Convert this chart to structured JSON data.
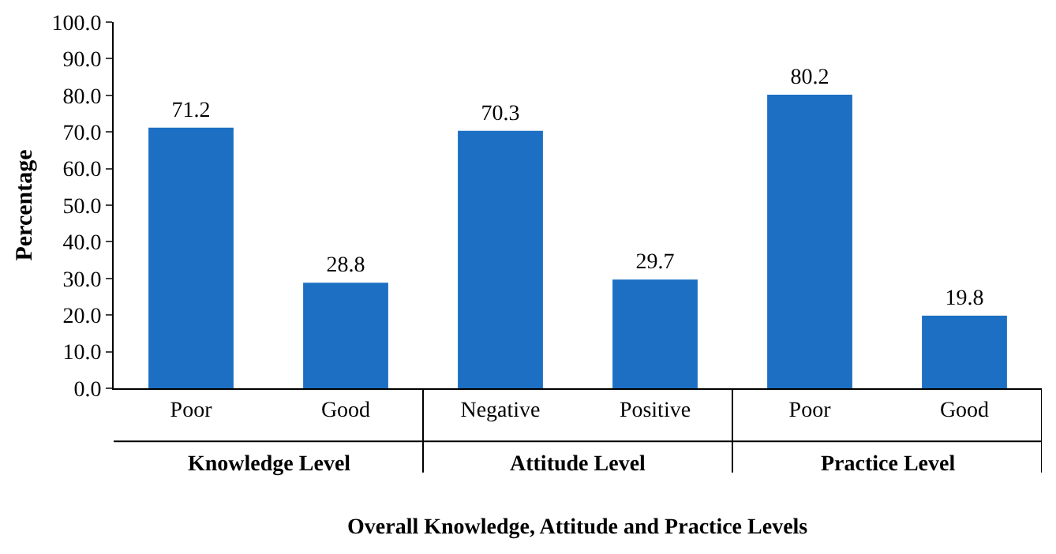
{
  "chart_data": {
    "type": "bar",
    "categories": [
      "Poor",
      "Good",
      "Negative",
      "Positive",
      "Poor",
      "Good"
    ],
    "values": [
      71.2,
      28.8,
      70.3,
      29.7,
      80.2,
      19.8
    ],
    "color": "#1c6fc2",
    "data_labels": true,
    "ylabel": "Percentage",
    "xlabel": "Overall Knowledge, Attitude and Practice Levels",
    "annotations": [
      "Knowledge Level",
      "Attitude Level",
      "Practice Level"
    ],
    "ylim": [
      0,
      100
    ],
    "yticks": [
      {
        "value": 0,
        "label": "0.0"
      },
      {
        "value": 10,
        "label": "10.0"
      },
      {
        "value": 20,
        "label": "20.0"
      },
      {
        "value": 30,
        "label": "30.0"
      },
      {
        "value": 40,
        "label": "40.0"
      },
      {
        "value": 50,
        "label": "50.0"
      },
      {
        "value": 60,
        "label": "60.0"
      },
      {
        "value": 70,
        "label": "70.0"
      },
      {
        "value": 80,
        "label": "80.0"
      },
      {
        "value": 90,
        "label": "90.0"
      },
      {
        "value": 100,
        "label": "100.0"
      }
    ],
    "tick_labels": [
      "x",
      "y"
    ]
  }
}
